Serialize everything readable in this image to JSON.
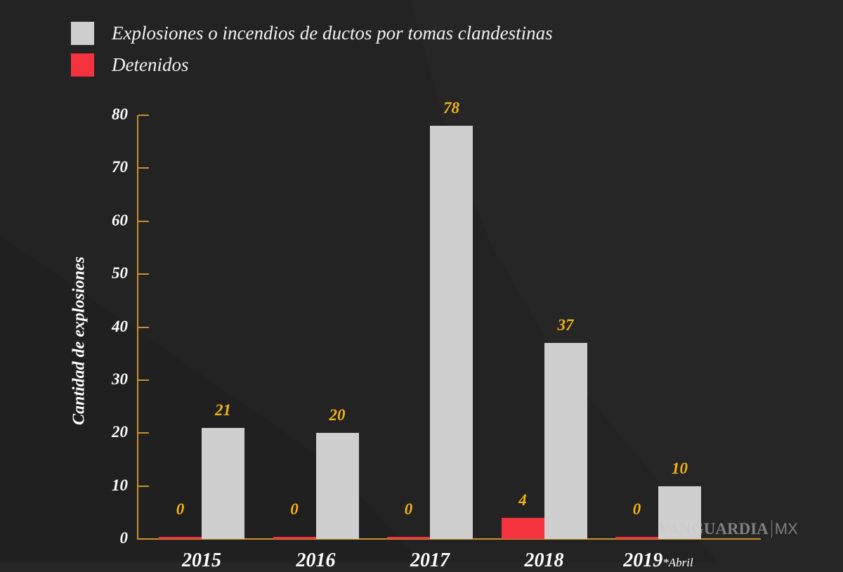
{
  "colors": {
    "background": "#262626",
    "explosions": "#cfcfcf",
    "detained": "#f4333f",
    "value_label": "#f4b216",
    "axis": "#c8902a",
    "text": "#ffffff"
  },
  "legend": [
    {
      "label": "Explosiones o incendios de ductos por tomas clandestinas",
      "color": "#cfcfcf"
    },
    {
      "label": "Detenidos",
      "color": "#f4333f"
    }
  ],
  "axis": {
    "ylabel": "Cantidad de explosiones",
    "yticks": [
      "0",
      "10",
      "20",
      "30",
      "40",
      "50",
      "60",
      "70",
      "80"
    ]
  },
  "watermark": {
    "brand": "VANGUARDIA",
    "suffix": "MX"
  },
  "chart_data": {
    "type": "bar",
    "title": "",
    "xlabel": "",
    "ylabel": "Cantidad de explosiones",
    "categories": [
      "2015",
      "2016",
      "2017",
      "2018",
      "2019*Abril"
    ],
    "category_labels": [
      {
        "year": "2015",
        "note": ""
      },
      {
        "year": "2016",
        "note": ""
      },
      {
        "year": "2017",
        "note": ""
      },
      {
        "year": "2018",
        "note": ""
      },
      {
        "year": "2019",
        "note": "*Abril"
      }
    ],
    "series": [
      {
        "name": "Detenidos",
        "color": "#f4333f",
        "values": [
          0,
          0,
          0,
          4,
          0
        ]
      },
      {
        "name": "Explosiones o incendios de ductos por tomas clandestinas",
        "color": "#cfcfcf",
        "values": [
          21,
          20,
          78,
          37,
          10
        ]
      }
    ],
    "ylim": [
      0,
      80
    ],
    "yticks": [
      0,
      10,
      20,
      30,
      40,
      50,
      60,
      70,
      80
    ],
    "grid": false,
    "legend_position": "top-left",
    "data_labels": true
  }
}
